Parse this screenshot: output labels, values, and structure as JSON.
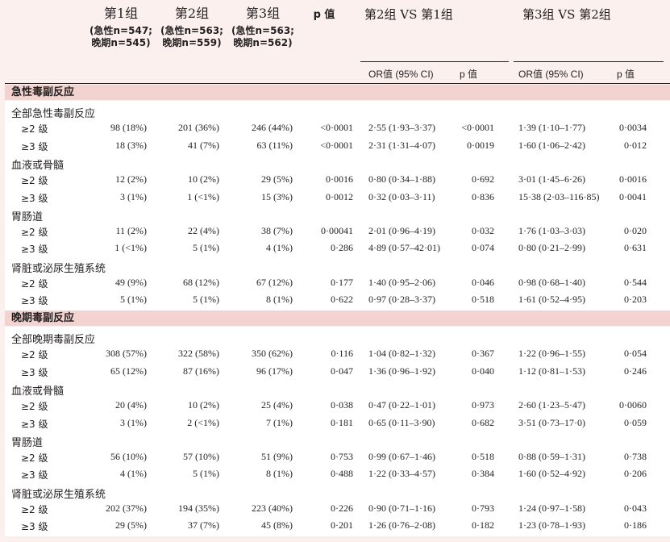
{
  "header": {
    "groups": [
      {
        "title": "第1组",
        "sub1": "(急性n=547;",
        "sub2": "晚期n=545)"
      },
      {
        "title": "第2组",
        "sub1": "(急性n=563;",
        "sub2": "晚期n=559)"
      },
      {
        "title": "第3组",
        "sub1": "(急性n=563;",
        "sub2": "晚期n=562)"
      }
    ],
    "p_label": "p 值",
    "cmp1": "第2组 VS 第1组",
    "cmp2": "第3组 VS 第2组",
    "or_label": "OR值 (95% CI)",
    "p_sub": "p 值"
  },
  "sections": [
    {
      "title": "急性毒副反应",
      "categories": [
        {
          "name": "全部急性毒副反应",
          "rows": [
            {
              "level": "≥2 级",
              "g1": "98 (18%)",
              "g2": "201 (36%)",
              "g3": "246 (44%)",
              "p": "<0·0001",
              "or21": "2·55 (1·93–3·37)",
              "p21": "<0·0001",
              "or32": "1·39 (1·10–1·77)",
              "p32": "0·0034"
            },
            {
              "level": "≥3 级",
              "g1": "18 (3%)",
              "g2": "41 (7%)",
              "g3": "63 (11%)",
              "p": "<0·0001",
              "or21": "2·31 (1·31–4·07)",
              "p21": "0·0019",
              "or32": "1·60 (1·06–2·42)",
              "p32": "0·012"
            }
          ]
        },
        {
          "name": "血液或骨髓",
          "rows": [
            {
              "level": "≥2 级",
              "g1": "12 (2%)",
              "g2": "10 (2%)",
              "g3": "29 (5%)",
              "p": "0·0016",
              "or21": "0·80 (0·34–1·88)",
              "p21": "0·692",
              "or32": "3·01 (1·45–6·26)",
              "p32": "0·0016"
            },
            {
              "level": "≥3 级",
              "g1": "3 (1%)",
              "g2": "1 (<1%)",
              "g3": "15 (3%)",
              "p": "0·0012",
              "or21": "0·32 (0·03–3·11)",
              "p21": "0·836",
              "or32": "15·38 (2·03–116·85)",
              "p32": "0·0041"
            }
          ]
        },
        {
          "name": "胃肠道",
          "rows": [
            {
              "level": "≥2 级",
              "g1": "11 (2%)",
              "g2": "22 (4%)",
              "g3": "38 (7%)",
              "p": "0·00041",
              "or21": "2·01 (0·96–4·19)",
              "p21": "0·032",
              "or32": "1·76 (1·03–3·03)",
              "p32": "0·020"
            },
            {
              "level": "≥3 级",
              "g1": "1 (<1%)",
              "g2": "5 (1%)",
              "g3": "4 (1%)",
              "p": "0·286",
              "or21": "4·89 (0·57–42·01)",
              "p21": "0·074",
              "or32": "0·80 (0·21–2·99)",
              "p32": "0·631"
            }
          ]
        },
        {
          "name": "肾脏或泌尿生殖系统",
          "rows": [
            {
              "level": "≥2 级",
              "g1": "49 (9%)",
              "g2": "68 (12%)",
              "g3": "67 (12%)",
              "p": "0·177",
              "or21": "1·40 (0·95–2·06)",
              "p21": "0·046",
              "or32": "0·98 (0·68–1·40)",
              "p32": "0·544"
            },
            {
              "level": "≥3 级",
              "g1": "5 (1%)",
              "g2": "5 (1%)",
              "g3": "8 (1%)",
              "p": "0·622",
              "or21": "0·97 (0·28–3·37)",
              "p21": "0·518",
              "or32": "1·61 (0·52–4·95)",
              "p32": "0·203"
            }
          ]
        }
      ]
    },
    {
      "title": "晚期毒副反应",
      "categories": [
        {
          "name": "全部晚期毒副反应",
          "rows": [
            {
              "level": "≥2 级",
              "g1": "308 (57%)",
              "g2": "322 (58%)",
              "g3": "350 (62%)",
              "p": "0·116",
              "or21": "1·04 (0·82–1·32)",
              "p21": "0·367",
              "or32": "1·22 (0·96–1·55)",
              "p32": "0·054"
            },
            {
              "level": "≥3 级",
              "g1": "65 (12%)",
              "g2": "87 (16%)",
              "g3": "96 (17%)",
              "p": "0·047",
              "or21": "1·36 (0·96–1·92)",
              "p21": "0·040",
              "or32": "1·12 (0·81–1·53)",
              "p32": "0·246"
            }
          ]
        },
        {
          "name": "血液或骨髓",
          "rows": [
            {
              "level": "≥2 级",
              "g1": "20 (4%)",
              "g2": "10 (2%)",
              "g3": "25 (4%)",
              "p": "0·038",
              "or21": "0·47 (0·22–1·01)",
              "p21": "0·973",
              "or32": "2·60 (1·23–5·47)",
              "p32": "0·0060"
            },
            {
              "level": "≥3 级",
              "g1": "3 (1%)",
              "g2": "2 (<1%)",
              "g3": "7 (1%)",
              "p": "0·181",
              "or21": "0·65 (0·11–3·90)",
              "p21": "0·682",
              "or32": "3·51 (0·73–17·0)",
              "p32": "0·059"
            }
          ]
        },
        {
          "name": "胃肠道",
          "rows": [
            {
              "level": "≥2 级",
              "g1": "56 (10%)",
              "g2": "57 (10%)",
              "g3": "51 (9%)",
              "p": "0·753",
              "or21": "0·99 (0·67–1·46)",
              "p21": "0·518",
              "or32": "0·88 (0·59–1·31)",
              "p32": "0·738"
            },
            {
              "level": "≥3 级",
              "g1": "4 (1%)",
              "g2": "5 (1%)",
              "g3": "8 (1%)",
              "p": "0·488",
              "or21": "1·22 (0·33–4·57)",
              "p21": "0·384",
              "or32": "1·60 (0·52–4·92)",
              "p32": "0·206"
            }
          ]
        },
        {
          "name": "肾脏或泌尿生殖系统",
          "rows": [
            {
              "level": "≥2 级",
              "g1": "202 (37%)",
              "g2": "194 (35%)",
              "g3": "223 (40%)",
              "p": "0·226",
              "or21": "0·90 (0·71–1·16)",
              "p21": "0·793",
              "or32": "1·24 (0·97–1·58)",
              "p32": "0·043"
            },
            {
              "level": "≥3 级",
              "g1": "29 (5%)",
              "g2": "37 (7%)",
              "g3": "45 (8%)",
              "p": "0·201",
              "or21": "1·26 (0·76–2·08)",
              "p21": "0·182",
              "or32": "1·23 (0·78–1·93)",
              "p32": "0·186"
            }
          ]
        }
      ]
    }
  ]
}
